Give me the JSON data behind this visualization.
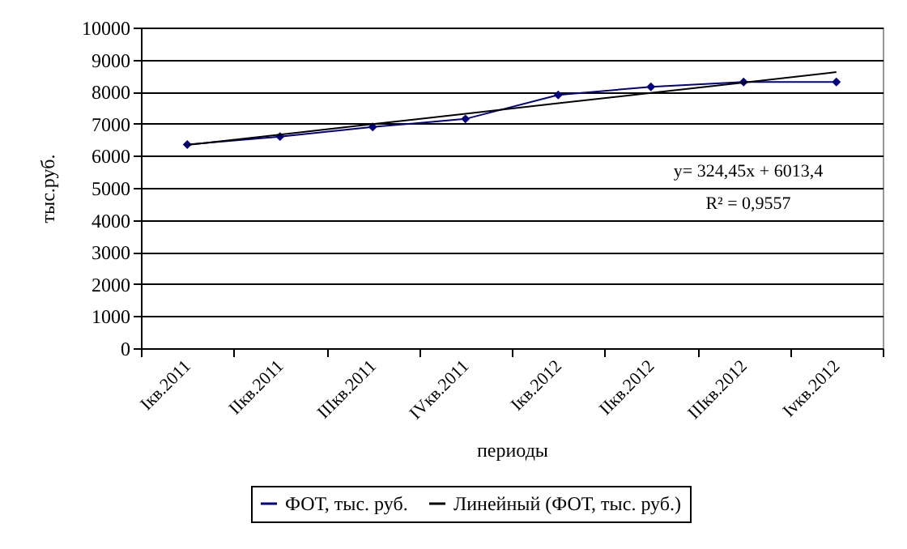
{
  "chart_data": {
    "type": "line",
    "xlabel": "периоды",
    "ylabel": "тыс.руб.",
    "categories": [
      "Iкв.2011",
      "IIкв.2011",
      "IIIкв.2011",
      "IVкв.2011",
      "Iкв.2012",
      "IIкв.2012",
      "IIIкв.2012",
      "Ivкв.2012"
    ],
    "series": [
      {
        "name": "ФОТ, тыс. руб.",
        "color": "#000080",
        "marker": "diamond",
        "values": [
          6350,
          6600,
          6900,
          7150,
          7900,
          8150,
          8300,
          8300
        ]
      },
      {
        "name": "Линейный (ФОТ, тыс. руб.)",
        "color": "#000000",
        "marker": "none",
        "values": [
          6340,
          6660,
          6990,
          7310,
          7640,
          7960,
          8280,
          8610
        ]
      }
    ],
    "ylim": [
      0,
      10000
    ],
    "yticks": [
      0,
      1000,
      2000,
      3000,
      4000,
      5000,
      6000,
      7000,
      8000,
      9000,
      10000
    ],
    "grid": "y",
    "legend": "bottom",
    "annotations": [
      "y= 324,45x + 6013,4",
      "R² = 0,9557"
    ]
  }
}
